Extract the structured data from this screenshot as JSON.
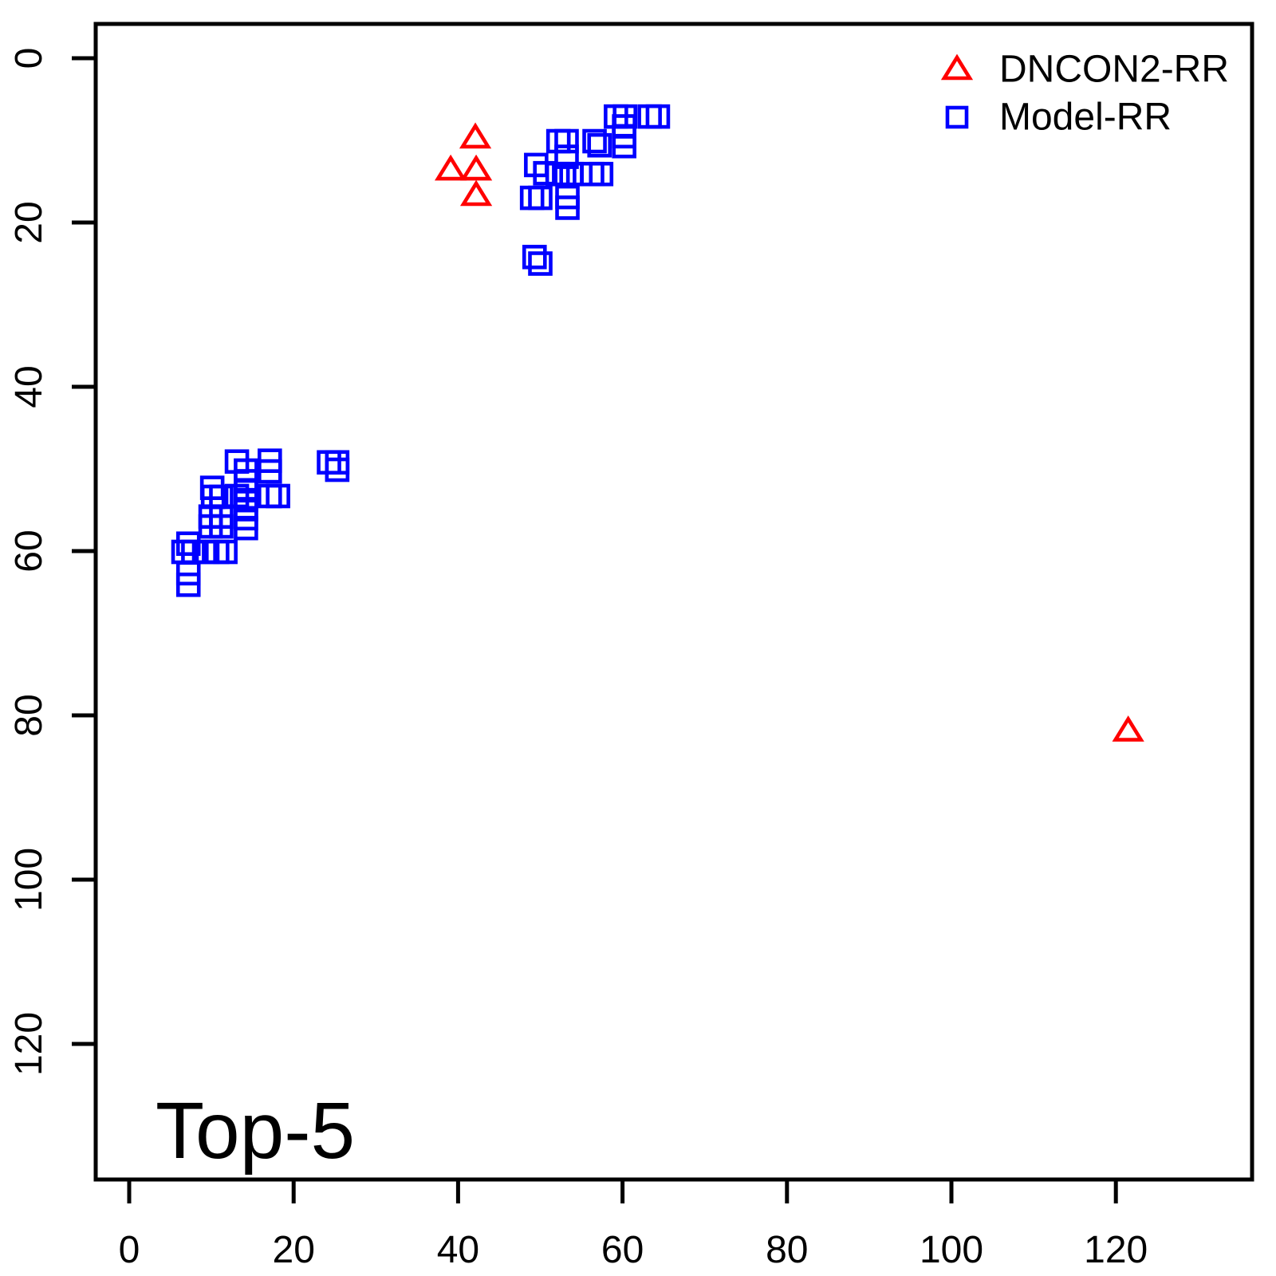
{
  "figure": {
    "background": "#ffffff",
    "corner_label": "Top-5",
    "legend": {
      "position": "top-right",
      "items": [
        {
          "label": "DNCON2-RR",
          "marker": "triangle",
          "color": "#ff0000"
        },
        {
          "label": "Model-RR",
          "marker": "square",
          "color": "#0000ff"
        }
      ]
    }
  },
  "chart_data": {
    "type": "scatter",
    "title": "Top-5",
    "xlabel": "",
    "ylabel": "",
    "x_ticks": [
      0,
      20,
      40,
      60,
      80,
      100,
      120
    ],
    "y_ticks": [
      0,
      20,
      40,
      60,
      80,
      100,
      120
    ],
    "xlim": [
      -4,
      137
    ],
    "ylim": [
      -4,
      137
    ],
    "y_axis_reversed": true,
    "grid": false,
    "legend_position": "top-right",
    "series": [
      {
        "name": "DNCON2-RR",
        "marker": "triangle",
        "color": "#ff0000",
        "points": [
          [
            42.1,
            9.7
          ],
          [
            39.1,
            13.6
          ],
          [
            42.2,
            13.6
          ],
          [
            42.2,
            16.7
          ],
          [
            121.5,
            81.9
          ]
        ]
      },
      {
        "name": "Model-RR",
        "marker": "square",
        "color": "#0000ff",
        "points": [
          [
            59.2,
            7.1
          ],
          [
            60.3,
            7.1
          ],
          [
            63.3,
            7.1
          ],
          [
            64.3,
            7.1
          ],
          [
            60.2,
            8.3
          ],
          [
            60.2,
            9.5
          ],
          [
            60.2,
            10.7
          ],
          [
            52.2,
            10.1
          ],
          [
            53.2,
            10.1
          ],
          [
            53.2,
            12.0
          ],
          [
            56.6,
            10.1
          ],
          [
            57.2,
            10.6
          ],
          [
            49.5,
            13.0
          ],
          [
            50.6,
            14.0
          ],
          [
            52.1,
            14.1
          ],
          [
            52.9,
            14.1
          ],
          [
            53.8,
            14.1
          ],
          [
            56.3,
            14.1
          ],
          [
            57.4,
            14.1
          ],
          [
            49.0,
            17.0
          ],
          [
            50.0,
            17.0
          ],
          [
            53.3,
            16.9
          ],
          [
            53.3,
            18.2
          ],
          [
            49.3,
            24.2
          ],
          [
            50.0,
            25.0
          ],
          [
            13.1,
            49.1
          ],
          [
            14.2,
            50.2
          ],
          [
            17.1,
            49.0
          ],
          [
            17.1,
            50.3
          ],
          [
            24.3,
            49.2
          ],
          [
            25.3,
            49.2
          ],
          [
            25.3,
            50.1
          ],
          [
            10.1,
            52.3
          ],
          [
            10.2,
            53.4
          ],
          [
            11.2,
            53.4
          ],
          [
            13.1,
            53.3
          ],
          [
            14.2,
            51.5
          ],
          [
            14.2,
            52.6
          ],
          [
            14.2,
            53.8
          ],
          [
            14.2,
            54.9
          ],
          [
            14.2,
            56.0
          ],
          [
            14.2,
            57.2
          ],
          [
            17.1,
            53.3
          ],
          [
            18.1,
            53.3
          ],
          [
            9.9,
            55.8
          ],
          [
            11.2,
            55.8
          ],
          [
            9.9,
            57.0
          ],
          [
            11.2,
            57.0
          ],
          [
            7.2,
            59.1
          ],
          [
            6.6,
            60.1
          ],
          [
            7.8,
            60.1
          ],
          [
            9.5,
            60.1
          ],
          [
            10.7,
            60.1
          ],
          [
            11.7,
            60.1
          ],
          [
            7.2,
            62.7
          ],
          [
            7.2,
            64.1
          ]
        ]
      }
    ]
  }
}
